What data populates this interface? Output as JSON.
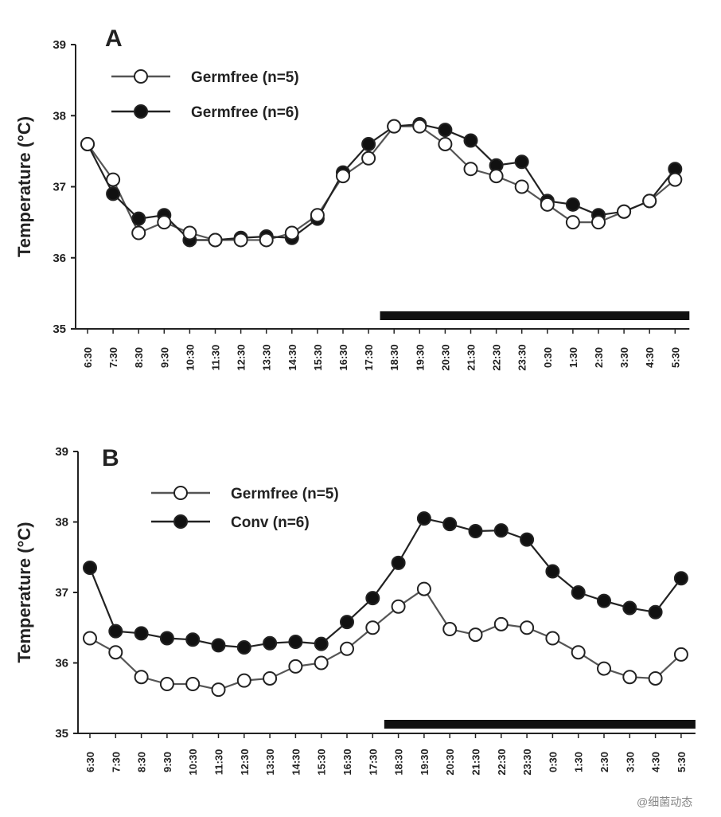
{
  "chart_data": [
    {
      "panel": "A",
      "type": "line",
      "ylabel": "Temperature (°C)",
      "xlabel": "",
      "ylim": [
        35,
        39
      ],
      "yticks": [
        "35",
        "36",
        "37",
        "38",
        "39"
      ],
      "categories": [
        "6:30",
        "7:30",
        "8:30",
        "9:30",
        "10:30",
        "11:30",
        "12:30",
        "13:30",
        "14:30",
        "15:30",
        "16:30",
        "17:30",
        "18:30",
        "19:30",
        "20:30",
        "21:30",
        "22:30",
        "23:30",
        "0:30",
        "1:30",
        "2:30",
        "3:30",
        "4:30",
        "5:30"
      ],
      "series": [
        {
          "name": "Germfree (n=5)",
          "marker": "open-circle",
          "values": [
            37.6,
            37.1,
            36.35,
            36.5,
            36.35,
            36.25,
            36.25,
            36.25,
            36.35,
            36.6,
            37.15,
            37.4,
            37.85,
            37.85,
            37.6,
            37.25,
            37.15,
            37.0,
            36.75,
            36.5,
            36.5,
            36.65,
            36.8,
            37.1
          ]
        },
        {
          "name": "Germfree (n=6)",
          "marker": "filled-circle",
          "values": [
            37.6,
            36.9,
            36.55,
            36.6,
            36.25,
            36.25,
            36.28,
            36.3,
            36.28,
            36.55,
            37.2,
            37.6,
            37.85,
            37.88,
            37.8,
            37.65,
            37.3,
            37.35,
            36.8,
            36.75,
            36.6,
            36.65,
            36.8,
            37.25
          ]
        }
      ],
      "dark_period": {
        "from": "17:30",
        "to": "5:30"
      },
      "legend_position": "top-left",
      "grid": false
    },
    {
      "panel": "B",
      "type": "line",
      "ylabel": "Temperature (°C)",
      "xlabel": "",
      "ylim": [
        35,
        39
      ],
      "yticks": [
        "35",
        "36",
        "37",
        "38",
        "39"
      ],
      "categories": [
        "6:30",
        "7:30",
        "8:30",
        "9:30",
        "10:30",
        "11:30",
        "12:30",
        "13:30",
        "14:30",
        "15:30",
        "16:30",
        "17:30",
        "18:30",
        "19:30",
        "20:30",
        "21:30",
        "22:30",
        "23:30",
        "0:30",
        "1:30",
        "2:30",
        "3:30",
        "4:30",
        "5:30"
      ],
      "series": [
        {
          "name": "Germfree (n=5)",
          "marker": "open-circle",
          "values": [
            36.35,
            36.15,
            35.8,
            35.7,
            35.7,
            35.62,
            35.75,
            35.78,
            35.95,
            36.0,
            36.2,
            36.5,
            36.8,
            37.05,
            36.48,
            36.4,
            36.55,
            36.5,
            36.35,
            36.15,
            35.92,
            35.8,
            35.78,
            36.12
          ]
        },
        {
          "name": "Conv (n=6)",
          "marker": "filled-circle",
          "values": [
            37.35,
            36.45,
            36.42,
            36.35,
            36.33,
            36.25,
            36.22,
            36.28,
            36.3,
            36.27,
            36.58,
            36.92,
            37.42,
            38.05,
            37.97,
            37.87,
            37.88,
            37.75,
            37.3,
            37.0,
            36.88,
            36.78,
            36.72,
            37.2
          ]
        }
      ],
      "dark_period": {
        "from": "17:30",
        "to": "5:30"
      },
      "legend_position": "top-left",
      "grid": false
    }
  ],
  "watermark": "@细菌动态",
  "colors": {
    "ink": "#222222",
    "open_fill": "#ffffff",
    "filled": "#111111",
    "bar": "#111111"
  }
}
